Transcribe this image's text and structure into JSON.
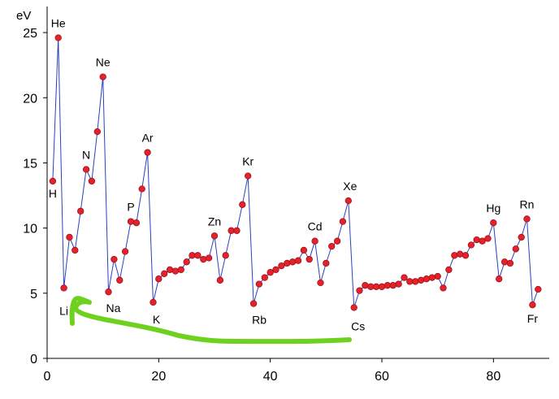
{
  "chart_data": {
    "type": "line",
    "title": "",
    "xlabel": "",
    "ylabel": "eV",
    "xlim": [
      0,
      90
    ],
    "ylim": [
      0,
      27
    ],
    "xticks": [
      0,
      20,
      40,
      60,
      80
    ],
    "yticks": [
      0,
      5,
      10,
      15,
      20,
      25
    ],
    "grid": false,
    "line_color": "#2a3fbf",
    "marker_color": "#e8202a",
    "annotation_color": "#6fd11f",
    "series": [
      {
        "name": "",
        "x": [
          1,
          2,
          3,
          4,
          5,
          6,
          7,
          8,
          9,
          10,
          11,
          12,
          13,
          14,
          15,
          16,
          17,
          18,
          19,
          20,
          21,
          22,
          23,
          24,
          25,
          26,
          27,
          28,
          29,
          30,
          31,
          32,
          33,
          34,
          35,
          36,
          37,
          38,
          39,
          40,
          41,
          42,
          43,
          44,
          45,
          46,
          47,
          48,
          49,
          50,
          51,
          52,
          53,
          54,
          55,
          56,
          57,
          58,
          59,
          60,
          61,
          62,
          63,
          64,
          65,
          66,
          67,
          68,
          69,
          70,
          71,
          72,
          73,
          74,
          75,
          76,
          77,
          78,
          79,
          80,
          81,
          82,
          83,
          84,
          85,
          86,
          87,
          88
        ],
        "y": [
          13.6,
          24.6,
          5.4,
          9.3,
          8.3,
          11.3,
          14.5,
          13.6,
          17.4,
          21.6,
          5.1,
          7.6,
          6.0,
          8.2,
          10.5,
          10.4,
          13.0,
          15.8,
          4.3,
          6.1,
          6.5,
          6.8,
          6.7,
          6.8,
          7.4,
          7.9,
          7.9,
          7.6,
          7.7,
          9.4,
          6.0,
          7.9,
          9.8,
          9.8,
          11.8,
          14.0,
          4.2,
          5.7,
          6.2,
          6.6,
          6.8,
          7.1,
          7.3,
          7.4,
          7.5,
          8.3,
          7.6,
          9.0,
          5.8,
          7.3,
          8.6,
          9.0,
          10.5,
          12.1,
          3.9,
          5.2,
          5.6,
          5.5,
          5.5,
          5.5,
          5.6,
          5.6,
          5.7,
          6.2,
          5.9,
          5.9,
          6.0,
          6.1,
          6.2,
          6.3,
          5.4,
          6.8,
          7.9,
          8.0,
          7.9,
          8.7,
          9.1,
          9.0,
          9.2,
          10.4,
          6.1,
          7.4,
          7.3,
          8.4,
          9.3,
          10.7,
          4.1,
          5.3
        ]
      }
    ],
    "annotations": [
      {
        "text": "He",
        "x": 2
      },
      {
        "text": "H",
        "x": 1
      },
      {
        "text": "Ne",
        "x": 10
      },
      {
        "text": "N",
        "x": 7
      },
      {
        "text": "Li",
        "x": 3
      },
      {
        "text": "Na",
        "x": 11
      },
      {
        "text": "P",
        "x": 15
      },
      {
        "text": "Ar",
        "x": 18
      },
      {
        "text": "K",
        "x": 19
      },
      {
        "text": "Zn",
        "x": 30
      },
      {
        "text": "Kr",
        "x": 36
      },
      {
        "text": "Rb",
        "x": 37
      },
      {
        "text": "Cd",
        "x": 48
      },
      {
        "text": "Xe",
        "x": 54
      },
      {
        "text": "Cs",
        "x": 55
      },
      {
        "text": "Hg",
        "x": 80
      },
      {
        "text": "Rn",
        "x": 86
      },
      {
        "text": "Fr",
        "x": 87
      }
    ]
  }
}
